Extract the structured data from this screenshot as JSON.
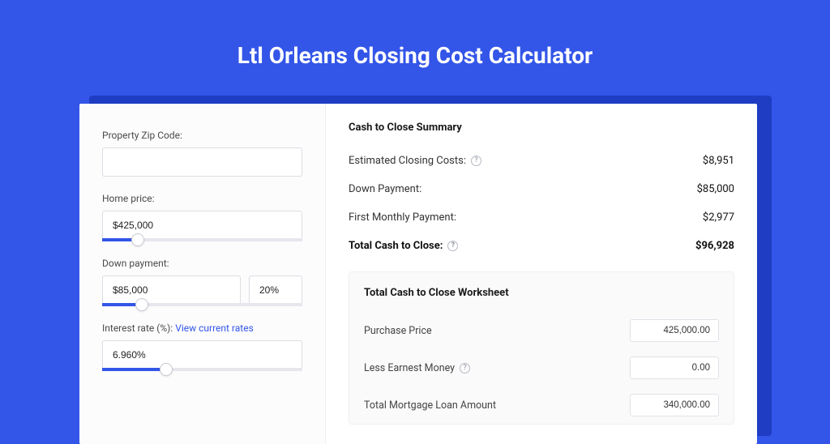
{
  "colors": {
    "page_bg": "#3355e8",
    "card_bg": "#ffffff",
    "shadow_bg": "#1f3dc2",
    "left_bg": "#fcfcfd",
    "border": "#dcdde3",
    "link": "#3355e8",
    "text": "#1a1a1a"
  },
  "title": "Ltl Orleans Closing Cost Calculator",
  "form": {
    "zip_label": "Property Zip Code:",
    "zip_value": "",
    "home_price_label": "Home price:",
    "home_price_value": "$425,000",
    "home_price_slider_pct": 18,
    "down_payment_label": "Down payment:",
    "down_payment_value": "$85,000",
    "down_payment_pct": "20%",
    "down_payment_slider_pct": 20,
    "interest_label": "Interest rate (%):",
    "interest_link": "View current rates",
    "interest_value": "6.960%",
    "interest_slider_pct": 32
  },
  "summary": {
    "heading": "Cash to Close Summary",
    "rows": [
      {
        "label": "Estimated Closing Costs:",
        "help": true,
        "value": "$8,951",
        "bold": false
      },
      {
        "label": "Down Payment:",
        "help": false,
        "value": "$85,000",
        "bold": false
      },
      {
        "label": "First Monthly Payment:",
        "help": false,
        "value": "$2,977",
        "bold": false
      },
      {
        "label": "Total Cash to Close:",
        "help": true,
        "value": "$96,928",
        "bold": true
      }
    ]
  },
  "worksheet": {
    "heading": "Total Cash to Close Worksheet",
    "rows": [
      {
        "label": "Purchase Price",
        "help": false,
        "value": "425,000.00"
      },
      {
        "label": "Less Earnest Money",
        "help": true,
        "value": "0.00"
      },
      {
        "label": "Total Mortgage Loan Amount",
        "help": false,
        "value": "340,000.00"
      }
    ]
  }
}
